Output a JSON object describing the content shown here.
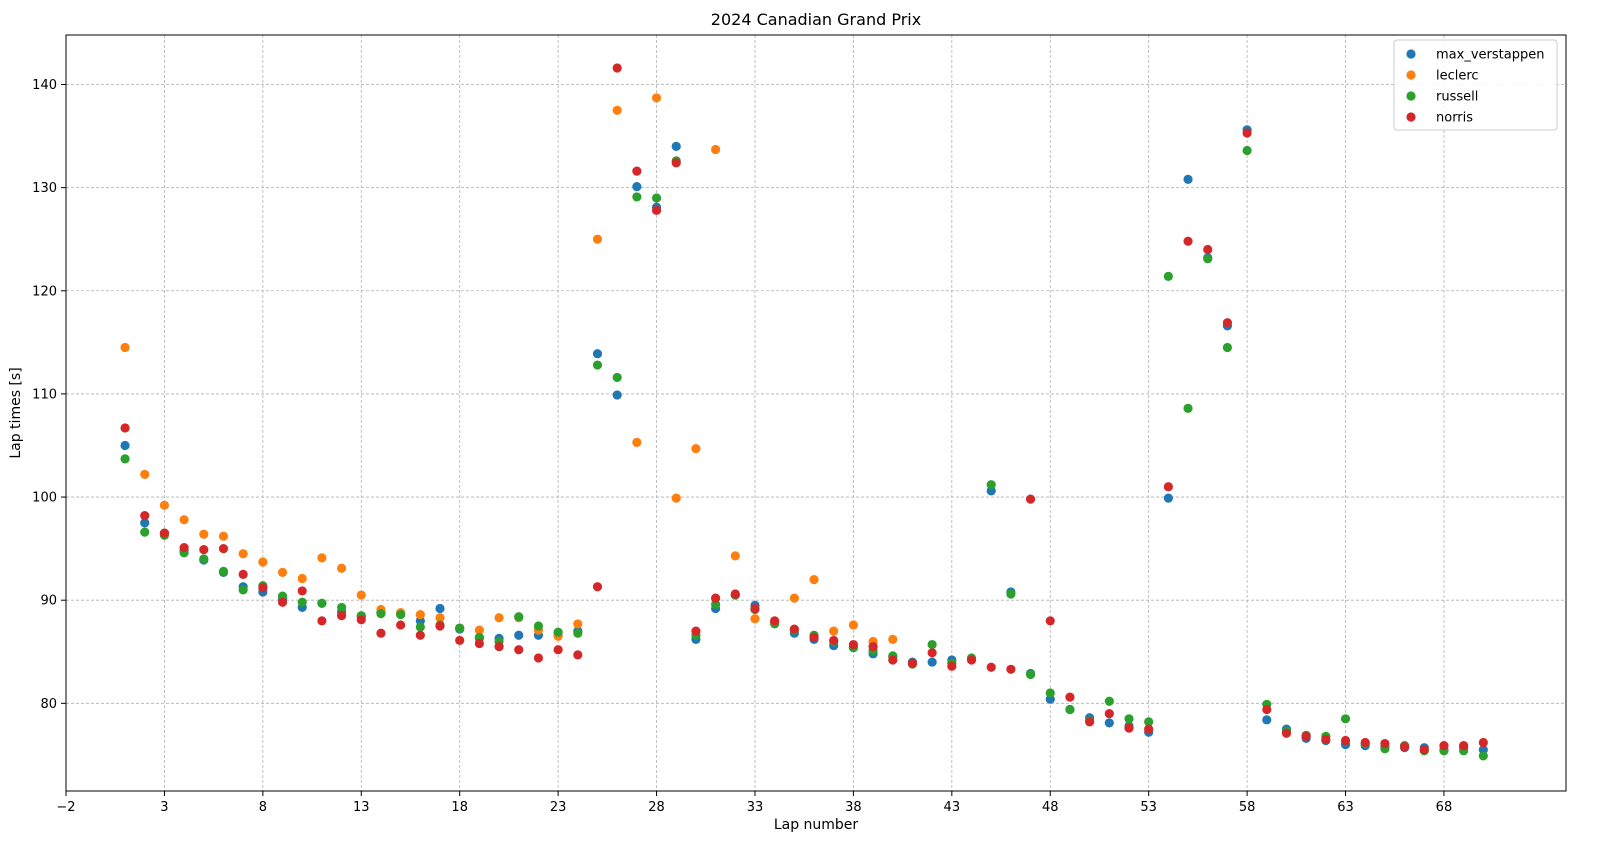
{
  "chart_data": {
    "type": "scatter",
    "title": "2024 Canadian Grand Prix",
    "xlabel": "Lap number",
    "ylabel": "Lap times [s]",
    "xlim": [
      -2.0,
      74.2
    ],
    "ylim": [
      71.5,
      144.8
    ],
    "xticks": [
      -2,
      3,
      8,
      13,
      18,
      23,
      28,
      33,
      38,
      43,
      48,
      53,
      58,
      63,
      68
    ],
    "yticks": [
      80,
      90,
      100,
      110,
      120,
      130,
      140
    ],
    "grid": true,
    "legend_position": "top-right",
    "series": [
      {
        "name": "max_verstappen",
        "color": "#1f77b4",
        "x": [
          1,
          2,
          3,
          4,
          5,
          6,
          7,
          8,
          9,
          10,
          11,
          12,
          13,
          14,
          15,
          16,
          17,
          18,
          19,
          20,
          21,
          22,
          23,
          24,
          25,
          26,
          27,
          28,
          29,
          30,
          31,
          32,
          33,
          34,
          35,
          36,
          37,
          38,
          39,
          40,
          41,
          42,
          43,
          44,
          45,
          46,
          47,
          48,
          49,
          50,
          51,
          52,
          53,
          54,
          55,
          56,
          57,
          58,
          59,
          60,
          61,
          62,
          63,
          64,
          65,
          66,
          67,
          68,
          69,
          70
        ],
        "y": [
          105.0,
          97.5,
          96.5,
          94.8,
          93.9,
          92.7,
          91.3,
          90.8,
          90.1,
          89.3,
          89.7,
          88.9,
          88.4,
          88.8,
          88.7,
          88.0,
          89.2,
          87.2,
          86.3,
          86.3,
          86.6,
          86.6,
          86.6,
          87.0,
          113.9,
          109.9,
          130.1,
          128.1,
          134.0,
          86.2,
          89.2,
          90.5,
          89.5,
          87.9,
          86.8,
          86.2,
          85.6,
          85.4,
          84.8,
          84.5,
          84.0,
          84.0,
          84.2,
          84.3,
          100.6,
          90.8,
          82.9,
          80.4,
          79.4,
          78.6,
          78.1,
          77.8,
          77.2,
          99.9,
          130.8,
          123.2,
          116.6,
          135.6,
          78.4,
          77.5,
          76.6,
          76.4,
          76.0,
          75.9,
          75.8,
          75.7,
          75.7,
          75.5,
          75.7,
          75.5
        ]
      },
      {
        "name": "leclerc",
        "color": "#ff7f0e",
        "x": [
          1,
          2,
          3,
          4,
          5,
          6,
          7,
          8,
          9,
          10,
          11,
          12,
          13,
          14,
          15,
          16,
          17,
          18,
          19,
          20,
          21,
          22,
          23,
          24,
          25,
          26,
          27,
          28,
          29,
          30,
          31,
          32,
          33,
          34,
          35,
          36,
          37,
          38,
          39,
          40
        ],
        "y": [
          114.5,
          102.2,
          99.2,
          97.8,
          96.4,
          96.2,
          94.5,
          93.7,
          92.7,
          92.1,
          94.1,
          93.1,
          90.5,
          89.1,
          88.8,
          88.6,
          88.3,
          87.3,
          87.1,
          88.3,
          88.3,
          87.1,
          86.5,
          87.7,
          125.0,
          137.5,
          105.3,
          138.7,
          99.9,
          104.7,
          133.7,
          94.3,
          88.2,
          87.8,
          90.2,
          92.0,
          87.0,
          87.6,
          86.0,
          86.2
        ]
      },
      {
        "name": "russell",
        "color": "#2ca02c",
        "x": [
          1,
          2,
          3,
          4,
          5,
          6,
          7,
          8,
          9,
          10,
          11,
          12,
          13,
          14,
          15,
          16,
          17,
          18,
          19,
          20,
          21,
          22,
          23,
          24,
          25,
          26,
          27,
          28,
          29,
          30,
          31,
          32,
          33,
          34,
          35,
          36,
          37,
          38,
          39,
          40,
          41,
          42,
          43,
          44,
          45,
          46,
          47,
          48,
          49,
          50,
          51,
          52,
          53,
          54,
          55,
          56,
          57,
          58,
          59,
          60,
          61,
          62,
          63,
          64,
          65,
          66,
          67,
          68,
          69,
          70
        ],
        "y": [
          103.7,
          96.6,
          96.3,
          94.6,
          94.0,
          92.8,
          91.0,
          91.4,
          90.4,
          89.8,
          89.7,
          89.3,
          88.5,
          88.7,
          88.6,
          87.4,
          87.6,
          87.3,
          86.4,
          86.0,
          88.4,
          87.5,
          86.9,
          86.8,
          112.8,
          111.6,
          129.1,
          129.0,
          132.6,
          86.6,
          89.6,
          90.5,
          89.1,
          87.7,
          87.1,
          86.6,
          86.0,
          85.4,
          85.1,
          84.6,
          83.8,
          85.7,
          83.9,
          84.4,
          101.2,
          90.6,
          82.8,
          81.0,
          79.4,
          78.3,
          80.2,
          78.5,
          78.2,
          121.4,
          108.6,
          123.1,
          114.5,
          133.6,
          79.9,
          77.3,
          76.9,
          76.8,
          78.5,
          76.1,
          75.6,
          75.9,
          75.4,
          75.4,
          75.4,
          74.9
        ]
      },
      {
        "name": "norris",
        "color": "#d62728",
        "x": [
          1,
          2,
          3,
          4,
          5,
          6,
          7,
          8,
          9,
          10,
          11,
          12,
          13,
          14,
          15,
          16,
          17,
          18,
          19,
          20,
          21,
          22,
          23,
          24,
          25,
          26,
          27,
          28,
          29,
          30,
          31,
          32,
          33,
          34,
          35,
          36,
          37,
          38,
          39,
          40,
          41,
          42,
          43,
          44,
          45,
          46,
          47,
          48,
          49,
          50,
          51,
          52,
          53,
          54,
          55,
          56,
          57,
          58,
          59,
          60,
          61,
          62,
          63,
          64,
          65,
          66,
          67,
          68,
          69,
          70
        ],
        "y": [
          106.7,
          98.2,
          96.5,
          95.1,
          94.9,
          95.0,
          92.5,
          91.2,
          89.8,
          90.9,
          88.0,
          88.5,
          88.1,
          86.8,
          87.6,
          86.6,
          87.5,
          86.1,
          85.8,
          85.5,
          85.2,
          84.4,
          85.2,
          84.7,
          91.3,
          141.6,
          131.6,
          127.8,
          132.4,
          87.0,
          90.2,
          90.6,
          89.2,
          88.0,
          87.2,
          86.4,
          86.1,
          85.7,
          85.5,
          84.2,
          83.9,
          84.9,
          83.6,
          84.2,
          83.5,
          83.3,
          99.8,
          88.0,
          80.6,
          78.2,
          79.0,
          77.6,
          77.5,
          101.0,
          124.8,
          124.0,
          116.9,
          135.3,
          79.4,
          77.1,
          76.8,
          76.5,
          76.4,
          76.2,
          76.1,
          75.8,
          75.5,
          75.9,
          75.9,
          76.2
        ]
      }
    ]
  }
}
